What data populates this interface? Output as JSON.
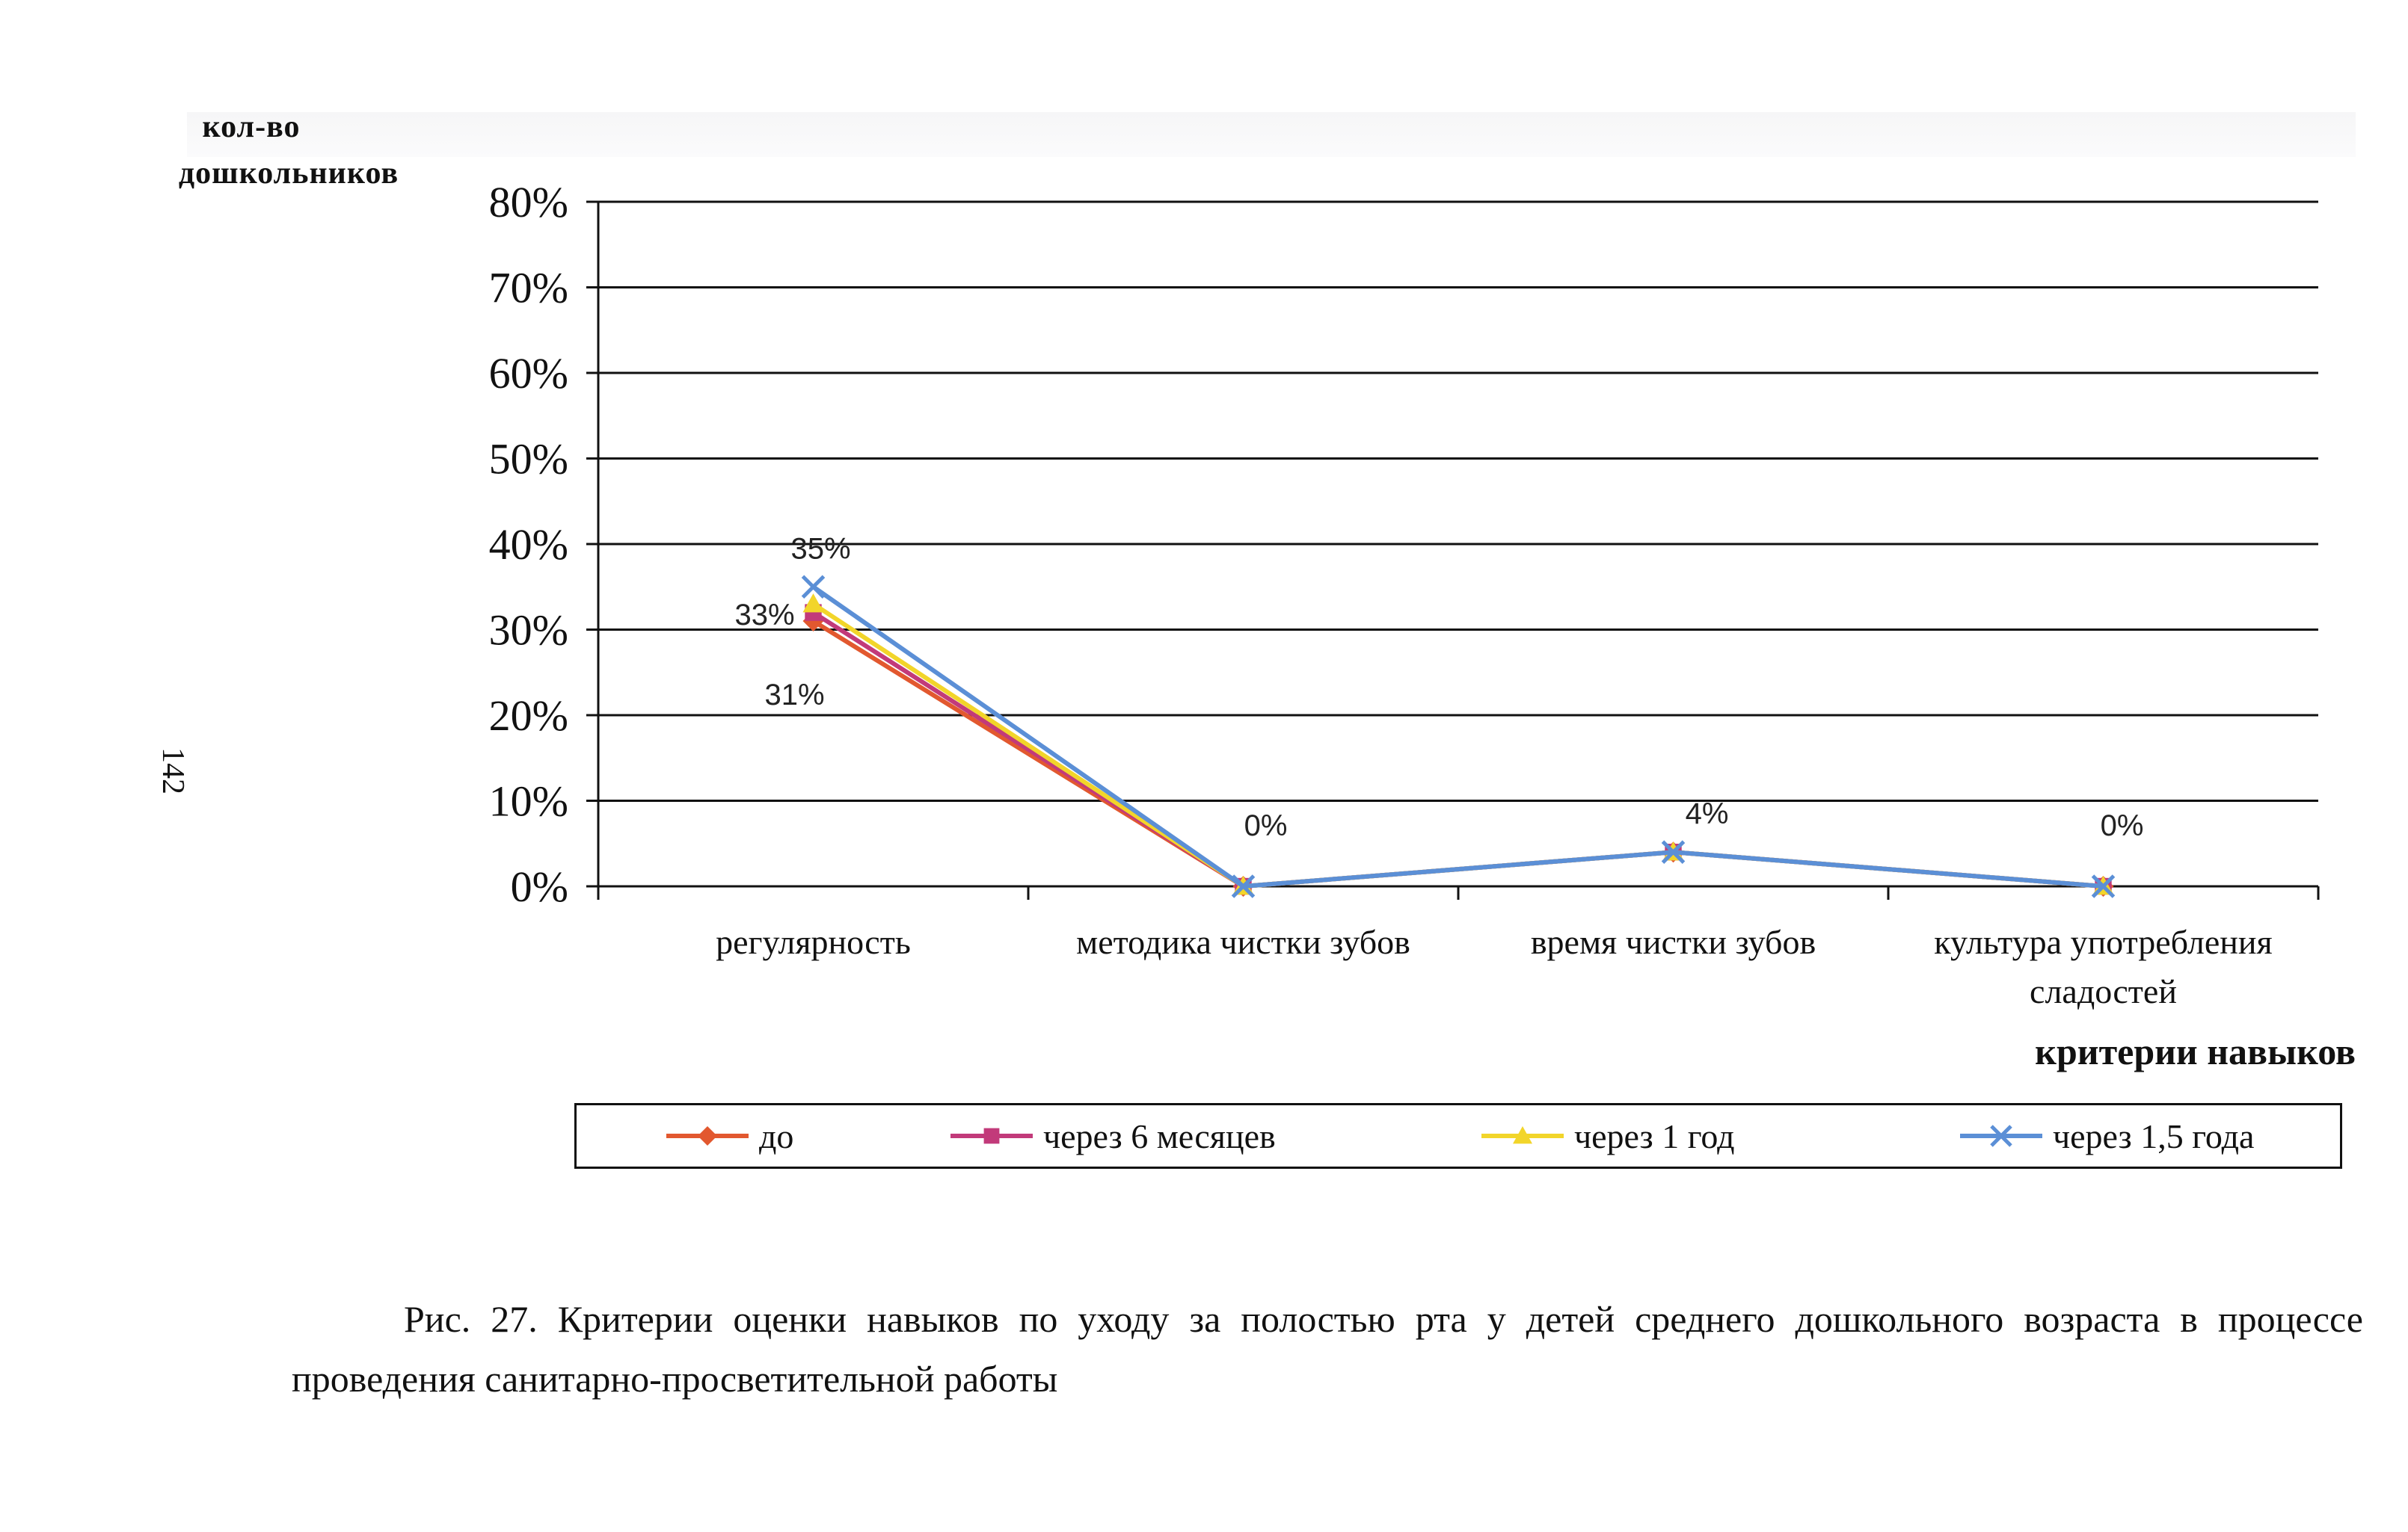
{
  "page_number": "142",
  "caption": "Рис. 27. Критерии оценки навыков по уходу за полостью рта у детей среднего дошкольного возраста в процессе проведения санитарно-просветительной работы",
  "chart_data": {
    "type": "line",
    "ylabel": [
      "кол-во",
      "дошкольников"
    ],
    "xlabel": "критерии навыков",
    "categories": [
      [
        "регулярность"
      ],
      [
        "методика чистки зубов"
      ],
      [
        "время чистки зубов"
      ],
      [
        "культура употребления",
        "сладостей"
      ]
    ],
    "ylim": [
      0,
      80
    ],
    "yticks": [
      "0%",
      "10%",
      "20%",
      "30%",
      "40%",
      "50%",
      "60%",
      "70%",
      "80%"
    ],
    "grid": true,
    "legend_position": "bottom",
    "series": [
      {
        "name": "до",
        "values": [
          31,
          0,
          4,
          0
        ],
        "color": "#e2582f",
        "marker": "diamond"
      },
      {
        "name": "через 6 месяцев",
        "values": [
          32,
          0,
          4,
          0
        ],
        "color": "#c23a7a",
        "marker": "square"
      },
      {
        "name": "через 1 год",
        "values": [
          33,
          0,
          4,
          0
        ],
        "color": "#f2d52a",
        "marker": "triangle"
      },
      {
        "name": "через 1,5 года",
        "values": [
          35,
          0,
          4,
          0
        ],
        "color": "#5b8fd6",
        "marker": "x"
      }
    ],
    "data_labels": [
      {
        "category": 0,
        "text": "35%",
        "value": 35
      },
      {
        "category": 0,
        "text": "33%",
        "value": 33
      },
      {
        "category": 0,
        "text": "31%",
        "value": 31
      },
      {
        "category": 1,
        "text": "0%",
        "value": 0
      },
      {
        "category": 2,
        "text": "4%",
        "value": 4
      },
      {
        "category": 3,
        "text": "0%",
        "value": 0
      }
    ]
  }
}
